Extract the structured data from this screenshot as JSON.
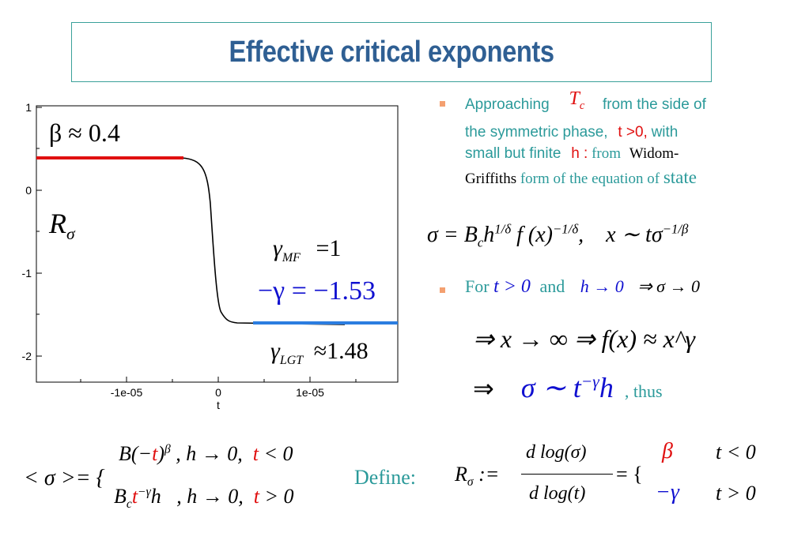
{
  "title": "Effective critical exponents",
  "plot": {
    "y_ticks": [
      "1",
      "0",
      "-1",
      "-2"
    ],
    "x_ticks": [
      "-1e-05",
      "0",
      "1e-05"
    ],
    "x_label": "t",
    "beta_label": "β ≈ 0.4",
    "r_label": "R",
    "r_sub": "σ",
    "gamma_mf_lhs": "γ",
    "gamma_mf_sub": "MF",
    "gamma_mf_rhs": "=1",
    "neg_gamma": "−γ = −1.53",
    "gamma_lgt_lhs": "γ",
    "gamma_lgt_sub": "LGT",
    "gamma_lgt_rhs": "≈1.48",
    "colors": {
      "beta_line": "#e01010",
      "gamma_line": "#2b7de0",
      "curve": "#000000"
    }
  },
  "bullets": {
    "b1_approaching": "Approaching",
    "b1_tc": "T",
    "b1_tc_sub": "c",
    "b1_rest1": "from the side of",
    "b1_line2a": "the symmetric phase,",
    "b1_t": "t >0,",
    "b1_with": "with",
    "b1_line3a": "small but finite",
    "b1_h": "h :",
    "b1_from": "from",
    "b1_widom": "Widom-",
    "b1_griffiths": "Griffiths",
    "b1_form": "form of the equation of",
    "b1_state": "state",
    "b2_for": "For",
    "b2_cond": "t > 0",
    "b2_and": "and",
    "b2_h": "h → 0",
    "b2_implies": "⇒  σ → 0"
  },
  "equations": {
    "eos": "σ = B_c h^{1/δ} f(x)^{−1/δ},   x ∼ tσ^{−1/β}",
    "limit1": "⇒  x → ∞  ⇒ f(x) ≈ x^γ",
    "limit2_arrow": "⇒",
    "limit2": "σ ∼ t^{−γ} h",
    "thus": ", thus",
    "define": "Define:"
  }
}
